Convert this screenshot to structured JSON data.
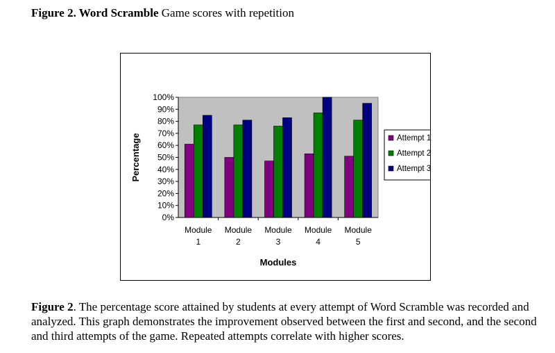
{
  "figure": {
    "title_bold": "Figure 2. Word Scramble",
    "title_rest": " Game scores with repetition"
  },
  "caption": {
    "label": "Figure 2",
    "text": ". The percentage score attained by students at every attempt of Word Scramble was recorded and analyzed.  This graph demonstrates the improvement observed between the first and second, and the second and third attempts of the game.  Repeated attempts correlate with higher scores."
  },
  "chart_data": {
    "type": "bar",
    "categories": [
      [
        "Module",
        "1"
      ],
      [
        "Module",
        "2"
      ],
      [
        "Module",
        "3"
      ],
      [
        "Module",
        "4"
      ],
      [
        "Module",
        "5"
      ]
    ],
    "series": [
      {
        "name": "Attempt 1",
        "color": "#800080",
        "values": [
          61,
          50,
          47,
          53,
          51
        ]
      },
      {
        "name": "Attempt 2",
        "color": "#008000",
        "values": [
          77,
          77,
          76,
          87,
          81
        ]
      },
      {
        "name": "Attempt 3",
        "color": "#000080",
        "values": [
          85,
          81,
          83,
          100,
          95
        ]
      }
    ],
    "xlabel": "Modules",
    "ylabel": "Percentage",
    "ylim": [
      0,
      100
    ],
    "yticks": [
      "0%",
      "10%",
      "20%",
      "30%",
      "40%",
      "50%",
      "60%",
      "70%",
      "80%",
      "90%",
      "100%"
    ],
    "plot_background": "#c0c0c0",
    "legend_position": "right",
    "grid": false
  }
}
